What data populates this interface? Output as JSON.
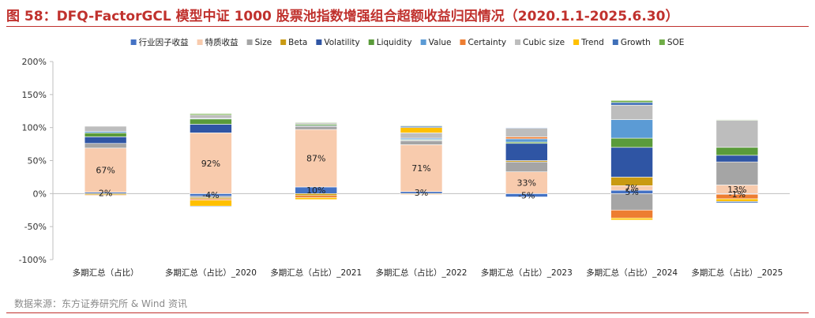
{
  "header": {
    "title": "图 58：DFQ-FactorGCL 模型中证 1000 股票池指数增强组合超额收益归因情况（2020.1.1-2025.6.30）",
    "source": "数据来源：东方证券研究所 & Wind 资讯"
  },
  "chart_data": {
    "type": "bar",
    "stacked": true,
    "grid": false,
    "legend_position": "top",
    "ylim": [
      -100,
      200
    ],
    "yticks": [
      "-100%",
      "-50%",
      "0%",
      "50%",
      "100%",
      "150%",
      "200%"
    ],
    "categories": [
      "多期汇总（占比）",
      "多期汇总（占比）_2020",
      "多期汇总（占比）_2021",
      "多期汇总（占比）_2022",
      "多期汇总（占比）_2023",
      "多期汇总（占比）_2024",
      "多期汇总（占比）_2025"
    ],
    "series": [
      {
        "name": "行业因子收益",
        "color": "#4472c4",
        "values": [
          2,
          -4,
          10,
          3,
          -5,
          5,
          -1
        ]
      },
      {
        "name": "特质收益",
        "color": "#f8cbad",
        "values": [
          67,
          92,
          87,
          71,
          33,
          7,
          13
        ]
      },
      {
        "name": "Size",
        "color": "#a5a5a5",
        "values": [
          7,
          -2,
          5,
          6,
          15,
          -25,
          35
        ]
      },
      {
        "name": "Beta",
        "color": "#c99a12",
        "values": [
          -2,
          -2,
          -3,
          -1,
          2,
          13,
          0
        ]
      },
      {
        "name": "Volatility",
        "color": "#2f55a4",
        "values": [
          10,
          13,
          1,
          1,
          26,
          45,
          10
        ]
      },
      {
        "name": "Liquidity",
        "color": "#5a9b3a",
        "values": [
          6,
          8,
          2,
          1,
          2,
          14,
          12
        ]
      },
      {
        "name": "Value",
        "color": "#5b9bd5",
        "values": [
          2,
          1,
          0,
          2,
          5,
          28,
          0
        ]
      },
      {
        "name": "Certainty",
        "color": "#ed7d31",
        "values": [
          -1,
          -2,
          -3,
          -1,
          3,
          -12,
          -7
        ]
      },
      {
        "name": "Cubic size",
        "color": "#bdbdbd",
        "values": [
          8,
          5,
          2,
          8,
          13,
          22,
          41
        ]
      },
      {
        "name": "Trend",
        "color": "#ffc000",
        "values": [
          0,
          -9,
          -3,
          8,
          0,
          -3,
          -4
        ]
      },
      {
        "name": "Growth",
        "color": "#3f6fb8",
        "values": [
          0,
          -1,
          0,
          2,
          1,
          4,
          -2
        ]
      },
      {
        "name": "SOE",
        "color": "#70ad47",
        "values": [
          0,
          2,
          1,
          1,
          0,
          3,
          1
        ]
      }
    ],
    "data_labels": [
      {
        "category_index": 0,
        "series_index": 1,
        "text": "67%"
      },
      {
        "category_index": 0,
        "series_index": 0,
        "text": "2%"
      },
      {
        "category_index": 1,
        "series_index": 1,
        "text": "92%"
      },
      {
        "category_index": 1,
        "series_index": 0,
        "text": "-4%"
      },
      {
        "category_index": 2,
        "series_index": 1,
        "text": "87%"
      },
      {
        "category_index": 2,
        "series_index": 0,
        "text": "10%"
      },
      {
        "category_index": 3,
        "series_index": 1,
        "text": "71%"
      },
      {
        "category_index": 3,
        "series_index": 0,
        "text": "3%"
      },
      {
        "category_index": 4,
        "series_index": 1,
        "text": "33%"
      },
      {
        "category_index": 4,
        "series_index": 0,
        "text": "-5%"
      },
      {
        "category_index": 5,
        "series_index": 1,
        "text": "7%"
      },
      {
        "category_index": 5,
        "series_index": 0,
        "text": "5%"
      },
      {
        "category_index": 6,
        "series_index": 1,
        "text": "13%"
      },
      {
        "category_index": 6,
        "series_index": 0,
        "text": "-1%"
      }
    ]
  }
}
